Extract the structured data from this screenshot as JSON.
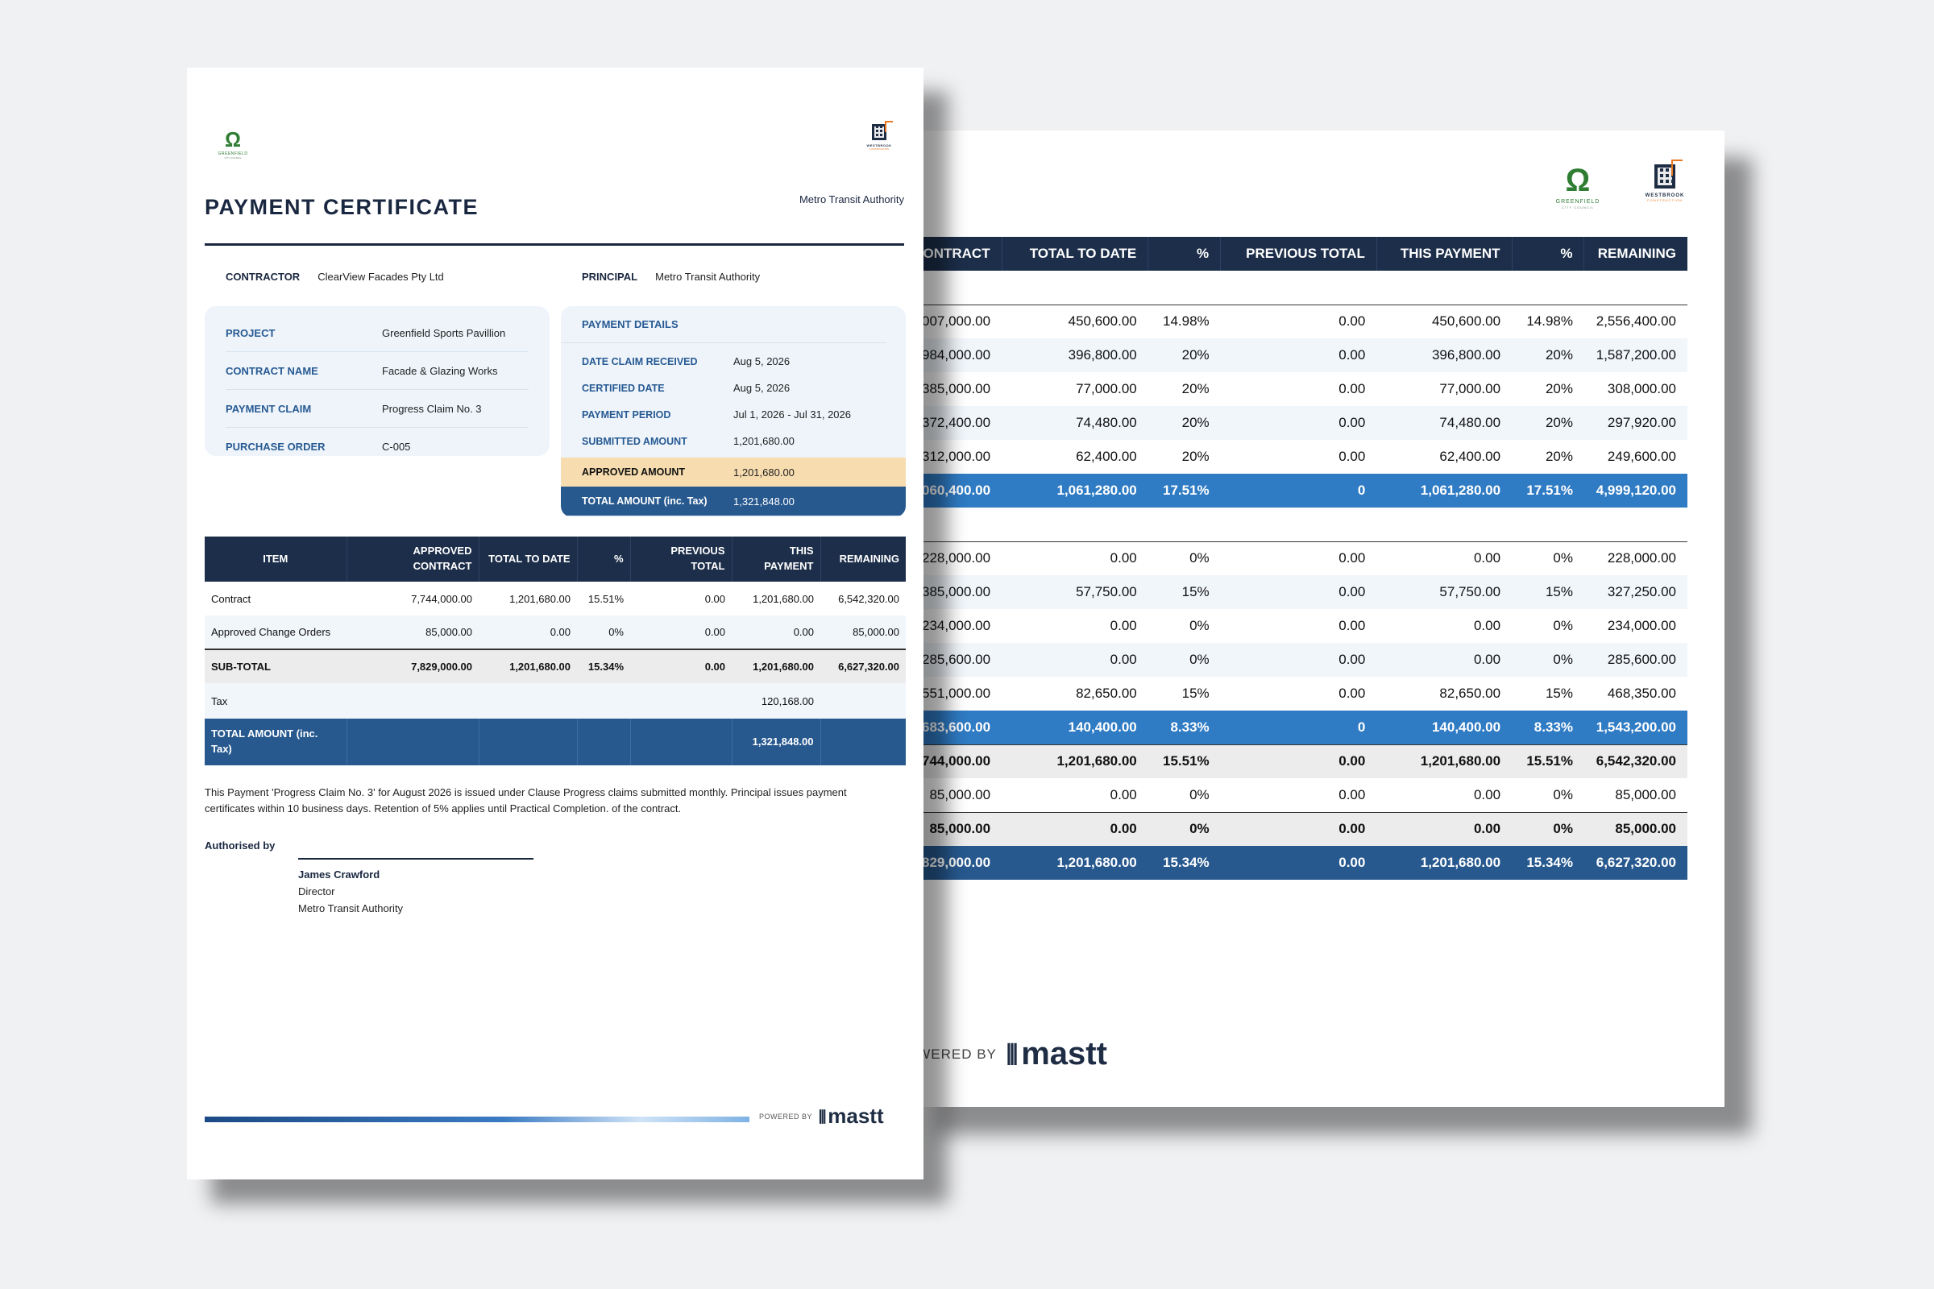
{
  "back": {
    "logos": {
      "greenfield": {
        "name": "GREENFIELD",
        "sub": "CITY COUNCIL"
      },
      "westbrook": {
        "name": "WESTBROOK",
        "sub": "CONSTRUCTION"
      }
    },
    "headers": [
      "ONTRACT",
      "TOTAL TO DATE",
      "%",
      "PREVIOUS TOTAL",
      "THIS PAYMENT",
      "%",
      "REMAINING"
    ],
    "rows": [
      {
        "type": "spacer",
        "cells": [
          "",
          "",
          "",
          "",
          "",
          "",
          ""
        ]
      },
      {
        "type": "plain",
        "cells": [
          "007,000.00",
          "450,600.00",
          "14.98%",
          "0.00",
          "450,600.00",
          "14.98%",
          "2,556,400.00"
        ]
      },
      {
        "type": "alt",
        "cells": [
          "984,000.00",
          "396,800.00",
          "20%",
          "0.00",
          "396,800.00",
          "20%",
          "1,587,200.00"
        ]
      },
      {
        "type": "plain",
        "cells": [
          "385,000.00",
          "77,000.00",
          "20%",
          "0.00",
          "77,000.00",
          "20%",
          "308,000.00"
        ]
      },
      {
        "type": "alt",
        "cells": [
          "372,400.00",
          "74,480.00",
          "20%",
          "0.00",
          "74,480.00",
          "20%",
          "297,920.00"
        ]
      },
      {
        "type": "plain",
        "cells": [
          "312,000.00",
          "62,400.00",
          "20%",
          "0.00",
          "62,400.00",
          "20%",
          "249,600.00"
        ]
      },
      {
        "type": "sub",
        "cells": [
          "060,400.00",
          "1,061,280.00",
          "17.51%",
          "0",
          "1,061,280.00",
          "17.51%",
          "4,999,120.00"
        ]
      },
      {
        "type": "spacer",
        "cells": [
          "",
          "",
          "",
          "",
          "",
          "",
          ""
        ]
      },
      {
        "type": "plain",
        "cells": [
          "228,000.00",
          "0.00",
          "0%",
          "0.00",
          "0.00",
          "0%",
          "228,000.00"
        ]
      },
      {
        "type": "alt",
        "cells": [
          "385,000.00",
          "57,750.00",
          "15%",
          "0.00",
          "57,750.00",
          "15%",
          "327,250.00"
        ]
      },
      {
        "type": "plain",
        "cells": [
          "234,000.00",
          "0.00",
          "0%",
          "0.00",
          "0.00",
          "0%",
          "234,000.00"
        ]
      },
      {
        "type": "alt",
        "cells": [
          "285,600.00",
          "0.00",
          "0%",
          "0.00",
          "0.00",
          "0%",
          "285,600.00"
        ]
      },
      {
        "type": "plain",
        "cells": [
          "551,000.00",
          "82,650.00",
          "15%",
          "0.00",
          "82,650.00",
          "15%",
          "468,350.00"
        ]
      },
      {
        "type": "sub",
        "cells": [
          "683,600.00",
          "140,400.00",
          "8.33%",
          "0",
          "140,400.00",
          "8.33%",
          "1,543,200.00"
        ]
      },
      {
        "type": "grey",
        "cells": [
          "744,000.00",
          "1,201,680.00",
          "15.51%",
          "0.00",
          "1,201,680.00",
          "15.51%",
          "6,542,320.00"
        ]
      },
      {
        "type": "plain-b",
        "cells": [
          "85,000.00",
          "0.00",
          "0%",
          "0.00",
          "0.00",
          "0%",
          "85,000.00"
        ]
      },
      {
        "type": "grey",
        "cells": [
          "85,000.00",
          "0.00",
          "0%",
          "0.00",
          "0.00",
          "0%",
          "85,000.00"
        ]
      },
      {
        "type": "final",
        "cells": [
          "829,000.00",
          "1,201,680.00",
          "15.34%",
          "0.00",
          "1,201,680.00",
          "15.34%",
          "6,627,320.00"
        ]
      }
    ],
    "powered_by": "OWERED BY",
    "brand": "mastt"
  },
  "front": {
    "logos": {
      "greenfield": {
        "name": "GREENFIELD",
        "sub": "CITY COUNCIL"
      },
      "westbrook": {
        "name": "WESTBROOK",
        "sub": "CONSTRUCTION"
      }
    },
    "title": "PAYMENT CERTIFICATE",
    "title_right": "Metro Transit Authority",
    "contractor_label": "CONTRACTOR",
    "contractor_value": "ClearView Facades Pty Ltd",
    "principal_label": "PRINCIPAL",
    "principal_value": "Metro Transit Authority",
    "project_info": [
      {
        "label": "PROJECT",
        "value": "Greenfield Sports Pavillion"
      },
      {
        "label": "CONTRACT NAME",
        "value": "Facade & Glazing Works"
      },
      {
        "label": "PAYMENT CLAIM",
        "value": "Progress Claim No. 3"
      },
      {
        "label": "PURCHASE ORDER",
        "value": "C-005"
      }
    ],
    "payment_details_title": "PAYMENT DETAILS",
    "payment_details": [
      {
        "label": "DATE CLAIM RECEIVED",
        "value": "Aug 5, 2026"
      },
      {
        "label": "CERTIFIED DATE",
        "value": "Aug 5, 2026"
      },
      {
        "label": "PAYMENT PERIOD",
        "value": "Jul 1, 2026 - Jul 31, 2026"
      },
      {
        "label": "SUBMITTED AMOUNT",
        "value": "1,201,680.00"
      }
    ],
    "approved_label": "APPROVED AMOUNT",
    "approved_value": "1,201,680.00",
    "total_label": "TOTAL AMOUNT (inc. Tax)",
    "total_value": "1,321,848.00",
    "table": {
      "headers": [
        "ITEM",
        "APPROVED CONTRACT",
        "TOTAL TO DATE",
        "%",
        "PREVIOUS TOTAL",
        "THIS PAYMENT",
        "REMAINING"
      ],
      "rows": [
        {
          "type": "plain",
          "cells": [
            "Contract",
            "7,744,000.00",
            "1,201,680.00",
            "15.51%",
            "0.00",
            "1,201,680.00",
            "6,542,320.00"
          ]
        },
        {
          "type": "alt",
          "cells": [
            "Approved Change Orders",
            "85,000.00",
            "0.00",
            "0%",
            "0.00",
            "0.00",
            "85,000.00"
          ]
        },
        {
          "type": "sub",
          "cells": [
            "SUB-TOTAL",
            "7,829,000.00",
            "1,201,680.00",
            "15.34%",
            "0.00",
            "1,201,680.00",
            "6,627,320.00"
          ]
        },
        {
          "type": "tax",
          "cells": [
            "Tax",
            "",
            "",
            "",
            "",
            "120,168.00",
            ""
          ]
        },
        {
          "type": "tot",
          "cells": [
            "TOTAL AMOUNT (inc. Tax)",
            "",
            "",
            "",
            "",
            "1,321,848.00",
            ""
          ]
        }
      ]
    },
    "note": "This Payment 'Progress Claim No. 3' for August 2026 is issued under Clause Progress claims submitted monthly. Principal issues payment certificates within 10 business days. Retention of 5% applies until Practical Completion. of the contract.",
    "authorised_by": "Authorised by",
    "signer": {
      "name": "James Crawford",
      "title": "Director",
      "org": "Metro Transit Authority"
    },
    "powered_by": "POWERED BY",
    "brand": "mastt"
  }
}
